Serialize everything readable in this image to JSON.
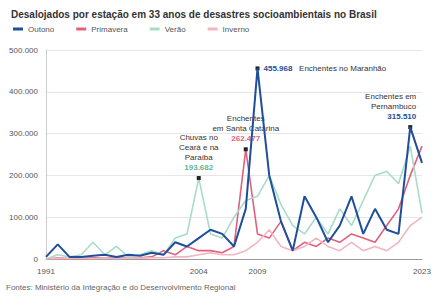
{
  "chart_data": {
    "type": "line",
    "title": "Desalojados por estação em 33 anos de desastres socioambientais no Brasil",
    "source": "Fontes: Ministério da Integração e do Desenvolvimento Regional",
    "categories": [
      "1991",
      null,
      null,
      null,
      null,
      null,
      null,
      null,
      null,
      null,
      null,
      null,
      null,
      "2004",
      null,
      null,
      null,
      null,
      "2009",
      null,
      null,
      null,
      null,
      null,
      null,
      null,
      null,
      null,
      null,
      null,
      null,
      null,
      "2023"
    ],
    "series": [
      {
        "name": "Outono",
        "color": "#1f4e9a",
        "values": [
          5000,
          35000,
          5000,
          5000,
          8000,
          10000,
          5000,
          10000,
          8000,
          15000,
          10000,
          40000,
          30000,
          50000,
          70000,
          60000,
          30000,
          120000,
          455968,
          200000,
          90000,
          20000,
          150000,
          100000,
          40000,
          80000,
          150000,
          60000,
          120000,
          70000,
          60000,
          315510,
          230000
        ]
      },
      {
        "name": "Primavera",
        "color": "#e0607e",
        "values": [
          0,
          2000,
          1000,
          2000,
          3000,
          2000,
          3000,
          2000,
          3000,
          5000,
          20000,
          10000,
          30000,
          20000,
          20000,
          15000,
          30000,
          262477,
          60000,
          50000,
          90000,
          20000,
          40000,
          30000,
          50000,
          40000,
          60000,
          50000,
          40000,
          80000,
          120000,
          200000,
          270000
        ]
      },
      {
        "name": "Verão",
        "color": "#a8dcc8",
        "values": [
          0,
          10000,
          5000,
          10000,
          40000,
          10000,
          30000,
          5000,
          10000,
          20000,
          10000,
          50000,
          60000,
          193682,
          60000,
          50000,
          100000,
          140000,
          150000,
          200000,
          130000,
          80000,
          60000,
          100000,
          60000,
          120000,
          80000,
          140000,
          200000,
          210000,
          180000,
          270000,
          110000
        ]
      },
      {
        "name": "Inverno",
        "color": "#f2b6c3",
        "values": [
          0,
          1000,
          1000,
          2000,
          1000,
          2000,
          1000,
          2000,
          2000,
          3000,
          3000,
          5000,
          5000,
          10000,
          15000,
          10000,
          10000,
          20000,
          40000,
          70000,
          30000,
          20000,
          30000,
          50000,
          30000,
          20000,
          40000,
          20000,
          30000,
          20000,
          40000,
          80000,
          100000
        ]
      }
    ],
    "annotations": [
      {
        "series": "Verão",
        "value": 193682,
        "value_label": "193.682",
        "text": "Chuvas no\nCeará e na\nParaíba"
      },
      {
        "series": "Outono",
        "value": 455968,
        "value_label": "455.968",
        "text": "Enchentes no Maranhão"
      },
      {
        "series": "Primavera",
        "value": 262477,
        "value_label": "262.477",
        "text": "Enchentes\nem Santa Catarina"
      },
      {
        "series": "Outono",
        "value": 315510,
        "value_label": "315.510",
        "text": "Enchentes em\nPernambuco"
      }
    ],
    "ylim": [
      0,
      500000
    ],
    "yticks": [
      0,
      {
        "value": 100000,
        "label": "100.000"
      },
      {
        "value": 200000,
        "label": "200.000"
      },
      {
        "value": 300000,
        "label": "300.000"
      },
      {
        "value": 400000,
        "label": "400.000"
      },
      {
        "value": 500000,
        "label": "500.000"
      }
    ],
    "grid": true,
    "legend": "top-left"
  }
}
